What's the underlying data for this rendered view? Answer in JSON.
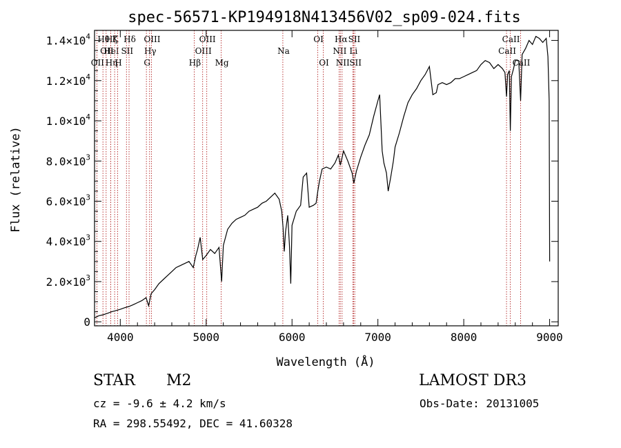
{
  "chart_data": {
    "type": "line",
    "title": "spec-56571-KP194918N413456V02_sp09-024.fits",
    "xlabel": "Wavelength (Å)",
    "ylabel": "Flux (relative)",
    "xlim": [
      3700,
      9100
    ],
    "ylim": [
      -200,
      14500
    ],
    "x_ticks": [
      4000,
      5000,
      6000,
      7000,
      8000,
      9000
    ],
    "y_ticks": [
      {
        "value": 0,
        "mant": "0",
        "exp": ""
      },
      {
        "value": 2000,
        "mant": "2.0×10",
        "exp": "3"
      },
      {
        "value": 4000,
        "mant": "4.0×10",
        "exp": "3"
      },
      {
        "value": 6000,
        "mant": "6.0×10",
        "exp": "3"
      },
      {
        "value": 8000,
        "mant": "8.0×10",
        "exp": "3"
      },
      {
        "value": 10000,
        "mant": "1.0×10",
        "exp": "4"
      },
      {
        "value": 12000,
        "mant": "1.2×10",
        "exp": "4"
      },
      {
        "value": 14000,
        "mant": "1.4×10",
        "exp": "4"
      }
    ],
    "series": [
      {
        "name": "flux",
        "points": [
          [
            3700,
            200
          ],
          [
            3750,
            300
          ],
          [
            3800,
            350
          ],
          [
            3850,
            420
          ],
          [
            3900,
            500
          ],
          [
            3950,
            560
          ],
          [
            4000,
            620
          ],
          [
            4050,
            700
          ],
          [
            4100,
            760
          ],
          [
            4150,
            850
          ],
          [
            4200,
            950
          ],
          [
            4250,
            1050
          ],
          [
            4300,
            1200
          ],
          [
            4330,
            800
          ],
          [
            4360,
            1400
          ],
          [
            4400,
            1600
          ],
          [
            4450,
            1900
          ],
          [
            4500,
            2100
          ],
          [
            4550,
            2300
          ],
          [
            4600,
            2500
          ],
          [
            4650,
            2700
          ],
          [
            4700,
            2800
          ],
          [
            4750,
            2900
          ],
          [
            4800,
            3000
          ],
          [
            4850,
            2700
          ],
          [
            4880,
            3300
          ],
          [
            4900,
            3600
          ],
          [
            4930,
            4200
          ],
          [
            4960,
            3100
          ],
          [
            5000,
            3300
          ],
          [
            5050,
            3600
          ],
          [
            5100,
            3400
          ],
          [
            5150,
            3700
          ],
          [
            5180,
            2000
          ],
          [
            5200,
            3800
          ],
          [
            5250,
            4600
          ],
          [
            5300,
            4900
          ],
          [
            5350,
            5100
          ],
          [
            5400,
            5200
          ],
          [
            5450,
            5300
          ],
          [
            5500,
            5500
          ],
          [
            5550,
            5600
          ],
          [
            5600,
            5700
          ],
          [
            5650,
            5900
          ],
          [
            5700,
            6000
          ],
          [
            5750,
            6200
          ],
          [
            5800,
            6400
          ],
          [
            5850,
            6100
          ],
          [
            5880,
            5500
          ],
          [
            5895,
            4700
          ],
          [
            5910,
            3500
          ],
          [
            5925,
            4500
          ],
          [
            5950,
            5300
          ],
          [
            5970,
            3800
          ],
          [
            5985,
            1900
          ],
          [
            6000,
            4800
          ],
          [
            6050,
            5500
          ],
          [
            6100,
            5800
          ],
          [
            6130,
            7200
          ],
          [
            6170,
            7400
          ],
          [
            6200,
            5700
          ],
          [
            6250,
            5800
          ],
          [
            6280,
            5900
          ],
          [
            6300,
            6500
          ],
          [
            6320,
            7000
          ],
          [
            6350,
            7600
          ],
          [
            6400,
            7700
          ],
          [
            6450,
            7600
          ],
          [
            6500,
            7900
          ],
          [
            6540,
            8300
          ],
          [
            6563,
            7800
          ],
          [
            6600,
            8500
          ],
          [
            6650,
            8000
          ],
          [
            6700,
            7400
          ],
          [
            6720,
            6900
          ],
          [
            6750,
            7500
          ],
          [
            6800,
            8200
          ],
          [
            6850,
            8800
          ],
          [
            6900,
            9300
          ],
          [
            6950,
            10200
          ],
          [
            7000,
            11000
          ],
          [
            7020,
            11300
          ],
          [
            7050,
            8500
          ],
          [
            7070,
            7900
          ],
          [
            7100,
            7400
          ],
          [
            7120,
            6500
          ],
          [
            7150,
            7200
          ],
          [
            7180,
            8000
          ],
          [
            7200,
            8700
          ],
          [
            7250,
            9400
          ],
          [
            7300,
            10200
          ],
          [
            7350,
            10900
          ],
          [
            7400,
            11300
          ],
          [
            7450,
            11600
          ],
          [
            7500,
            12000
          ],
          [
            7550,
            12300
          ],
          [
            7600,
            12700
          ],
          [
            7640,
            11300
          ],
          [
            7680,
            11400
          ],
          [
            7700,
            11800
          ],
          [
            7750,
            11900
          ],
          [
            7800,
            11800
          ],
          [
            7850,
            11900
          ],
          [
            7900,
            12100
          ],
          [
            7950,
            12100
          ],
          [
            8000,
            12200
          ],
          [
            8050,
            12300
          ],
          [
            8100,
            12400
          ],
          [
            8150,
            12500
          ],
          [
            8200,
            12800
          ],
          [
            8250,
            13000
          ],
          [
            8300,
            12900
          ],
          [
            8350,
            12600
          ],
          [
            8400,
            12800
          ],
          [
            8450,
            12600
          ],
          [
            8480,
            12400
          ],
          [
            8498,
            11200
          ],
          [
            8510,
            12300
          ],
          [
            8530,
            12500
          ],
          [
            8542,
            9500
          ],
          [
            8555,
            12200
          ],
          [
            8580,
            12600
          ],
          [
            8600,
            13000
          ],
          [
            8640,
            13000
          ],
          [
            8662,
            11000
          ],
          [
            8680,
            13300
          ],
          [
            8720,
            13600
          ],
          [
            8760,
            14000
          ],
          [
            8800,
            13800
          ],
          [
            8840,
            14200
          ],
          [
            8880,
            14100
          ],
          [
            8920,
            13900
          ],
          [
            8960,
            14100
          ],
          [
            8980,
            13200
          ],
          [
            8995,
            11000
          ],
          [
            9000,
            3000
          ]
        ]
      }
    ],
    "line_markers": [
      {
        "wavelength": 3798,
        "label": "Hθ",
        "row": 0
      },
      {
        "wavelength": 3835,
        "label": "OII",
        "row": 1
      },
      {
        "wavelength": 3727,
        "label": "OII",
        "row": 2
      },
      {
        "wavelength": 3889,
        "label": "Hζ",
        "row": 0
      },
      {
        "wavelength": 3889,
        "label": "HeI",
        "row": 1
      },
      {
        "wavelength": 3889,
        "label": "Hη",
        "row": 2
      },
      {
        "wavelength": 3934,
        "label": "K",
        "row": 0
      },
      {
        "wavelength": 3969,
        "label": "H",
        "row": 2
      },
      {
        "wavelength": 4072,
        "label": "SII",
        "row": 1
      },
      {
        "wavelength": 4102,
        "label": "Hδ",
        "row": 0
      },
      {
        "wavelength": 4341,
        "label": "Hγ",
        "row": 1
      },
      {
        "wavelength": 4304,
        "label": "G",
        "row": 2
      },
      {
        "wavelength": 4363,
        "label": "OIII",
        "row": 0
      },
      {
        "wavelength": 4861,
        "label": "Hβ",
        "row": 2
      },
      {
        "wavelength": 4959,
        "label": "OIII",
        "row": 1
      },
      {
        "wavelength": 5007,
        "label": "OIII",
        "row": 0
      },
      {
        "wavelength": 5175,
        "label": "Mg",
        "row": 2
      },
      {
        "wavelength": 5893,
        "label": "Na",
        "row": 1
      },
      {
        "wavelength": 6300,
        "label": "OI",
        "row": 0
      },
      {
        "wavelength": 6364,
        "label": "OI",
        "row": 2
      },
      {
        "wavelength": 6563,
        "label": "Hα",
        "row": 0
      },
      {
        "wavelength": 6548,
        "label": "NII",
        "row": 1
      },
      {
        "wavelength": 6583,
        "label": "NII",
        "row": 2
      },
      {
        "wavelength": 6717,
        "label": "SII",
        "row": 0
      },
      {
        "wavelength": 6708,
        "label": "Li",
        "row": 1
      },
      {
        "wavelength": 6731,
        "label": "SII",
        "row": 2
      },
      {
        "wavelength": 8498,
        "label": "CaII",
        "row": 1
      },
      {
        "wavelength": 8542,
        "label": "CaII",
        "row": 0
      },
      {
        "wavelength": 8662,
        "label": "CaII",
        "row": 2
      }
    ]
  },
  "info": {
    "object_class": "STAR",
    "subclass": "M2",
    "survey": "LAMOST DR3",
    "redshift": "cz = -9.6 ± 4.2 km/s",
    "obs_date": "Obs-Date: 20131005",
    "coords": "RA = 298.55492, DEC =  41.60328"
  },
  "colors": {
    "spectrum": "#000000",
    "marker": "#b22222",
    "axis": "#000000"
  }
}
